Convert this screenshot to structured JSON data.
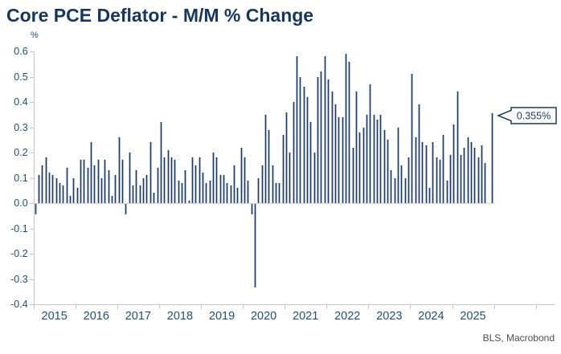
{
  "header": {
    "title": "Core PCE Deflator - M/M % Change"
  },
  "footer": {
    "source": "BLS, Macrobond"
  },
  "annotations": {
    "last_value_callout": "0.355%"
  },
  "colors": {
    "title": "#17365D",
    "bar": "#1E3A60",
    "bar_edge": "#A9B8CE",
    "axis": "#C6C6C6",
    "tick_label": "#1F4E79",
    "source_text": "#4D4D4D",
    "callout_border": "#1B3A61",
    "background": "#FFFFFF"
  },
  "chart_data": {
    "type": "bar",
    "title": "Core PCE Deflator - M/M % Change",
    "ylabel": "%",
    "xlabel": "",
    "grid": false,
    "ylim": [
      -0.4,
      0.6
    ],
    "y_tick_labels": [
      "0.6",
      "0.5",
      "0.4",
      "0.3",
      "0.2",
      "0.1",
      "0.0",
      "-0.1",
      "-0.2",
      "-0.3",
      "-0.4"
    ],
    "x_tick_labels": [
      "2015",
      "2016",
      "2017",
      "2018",
      "2019",
      "2020",
      "2021",
      "2022",
      "2023",
      "2024",
      "2025"
    ],
    "frequency": "monthly",
    "start_month": "2015-01",
    "last_value_label": "0.355%",
    "values": [
      -0.04,
      0.11,
      0.15,
      0.18,
      0.12,
      0.11,
      0.1,
      0.08,
      0.07,
      0.14,
      0.03,
      0.1,
      0.06,
      0.17,
      0.17,
      0.14,
      0.24,
      0.15,
      0.17,
      0.1,
      0.17,
      0.13,
      0.03,
      0.11,
      0.26,
      0.17,
      -0.04,
      0.2,
      0.07,
      0.13,
      0.07,
      0.1,
      0.11,
      0.24,
      0.04,
      0.14,
      0.32,
      0.18,
      0.21,
      0.18,
      0.17,
      0.09,
      0.08,
      0.13,
      0.01,
      0.18,
      0.15,
      0.18,
      0.12,
      0.08,
      0.09,
      0.2,
      0.18,
      0.11,
      0.11,
      0.08,
      0.07,
      0.15,
      0.06,
      0.22,
      0.18,
      0.09,
      -0.04,
      -0.33,
      0.1,
      0.15,
      0.35,
      0.29,
      0.15,
      0.08,
      0.08,
      0.27,
      0.36,
      0.2,
      0.4,
      0.58,
      0.5,
      0.46,
      0.42,
      0.32,
      0.2,
      0.5,
      0.52,
      0.58,
      0.49,
      0.44,
      0.39,
      0.34,
      0.34,
      0.59,
      0.56,
      0.22,
      0.44,
      0.28,
      0.3,
      0.35,
      0.47,
      0.35,
      0.33,
      0.35,
      0.29,
      0.25,
      0.13,
      0.1,
      0.3,
      0.15,
      0.1,
      0.18,
      0.51,
      0.26,
      0.39,
      0.24,
      0.23,
      0.06,
      0.24,
      0.18,
      0.17,
      0.27,
      0.09,
      0.19,
      0.31,
      0.44,
      0.19,
      0.22,
      0.26,
      0.24,
      0.22,
      0.18,
      0.23,
      0.16,
      null,
      0.355
    ]
  }
}
